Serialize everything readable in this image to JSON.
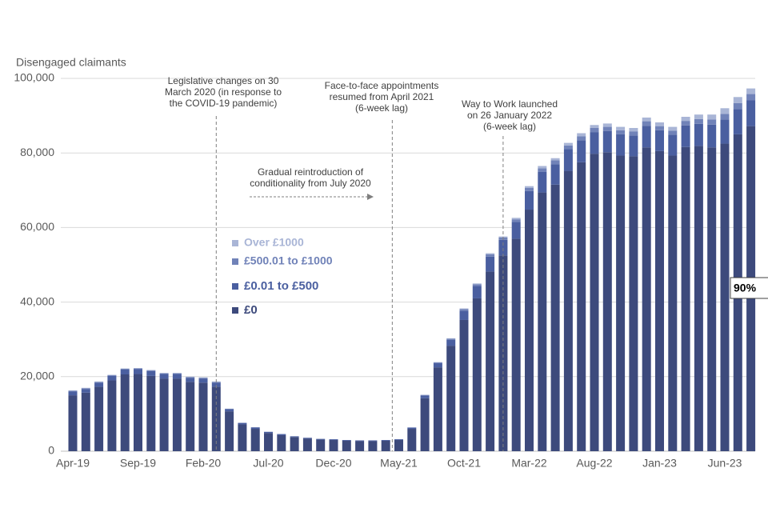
{
  "chart_data": {
    "type": "stacked-bar",
    "y_label": "Disengaged claimants",
    "categories": [
      "Apr-19",
      null,
      null,
      null,
      null,
      "Sep-19",
      null,
      null,
      null,
      null,
      "Feb-20",
      null,
      null,
      null,
      null,
      "Jul-20",
      null,
      null,
      null,
      null,
      "Dec-20",
      null,
      null,
      null,
      null,
      "May-21",
      null,
      null,
      null,
      null,
      "Oct-21",
      null,
      null,
      null,
      null,
      "Mar-22",
      null,
      null,
      null,
      null,
      "Aug-22",
      null,
      null,
      null,
      null,
      "Jan-23",
      null,
      null,
      null,
      null,
      "Jun-23",
      null,
      null
    ],
    "series": [
      {
        "name": "£0",
        "color": "#3d4a7c",
        "values": [
          15000,
          15700,
          17300,
          19000,
          20600,
          20700,
          20200,
          19500,
          19500,
          18600,
          18400,
          17300,
          10700,
          7200,
          6000,
          4900,
          4300,
          3800,
          3400,
          3100,
          3000,
          2800,
          2700,
          2700,
          2800,
          3000,
          6000,
          14200,
          22500,
          28300,
          35200,
          41000,
          48200,
          52500,
          57000,
          64800,
          69400,
          71500,
          75200,
          77500,
          79800,
          80200,
          79300,
          79100,
          81500,
          80500,
          79300,
          81600,
          81900,
          81500,
          82500,
          85000,
          87200
        ]
      },
      {
        "name": "£0.01 to £500",
        "color": "#4a5fa0",
        "values": [
          1000,
          1000,
          1100,
          1200,
          1300,
          1300,
          1300,
          1200,
          1200,
          1100,
          1100,
          1100,
          600,
          400,
          400,
          300,
          300,
          200,
          200,
          200,
          200,
          200,
          200,
          200,
          200,
          200,
          300,
          700,
          1100,
          1600,
          2500,
          3300,
          4000,
          4200,
          4500,
          5000,
          5500,
          5500,
          5800,
          5900,
          5800,
          5700,
          5700,
          5600,
          5800,
          5600,
          5600,
          5800,
          5900,
          6100,
          6500,
          6800,
          6900
        ]
      },
      {
        "name": "£500.01 to £1000",
        "color": "#7082b8",
        "values": [
          200,
          200,
          200,
          200,
          200,
          200,
          200,
          200,
          200,
          200,
          200,
          200,
          100,
          0,
          0,
          0,
          0,
          0,
          0,
          0,
          0,
          0,
          0,
          0,
          0,
          0,
          100,
          200,
          200,
          300,
          400,
          500,
          600,
          600,
          700,
          800,
          1000,
          1000,
          1000,
          1100,
          1100,
          1100,
          1100,
          1100,
          1200,
          1100,
          1100,
          1200,
          1300,
          1400,
          1500,
          1600,
          1700
        ]
      },
      {
        "name": "Over £1000",
        "color": "#a9b5d6",
        "values": [
          100,
          100,
          100,
          100,
          100,
          100,
          100,
          100,
          100,
          100,
          100,
          100,
          0,
          0,
          0,
          0,
          0,
          0,
          0,
          0,
          0,
          0,
          0,
          0,
          0,
          0,
          0,
          0,
          100,
          100,
          200,
          200,
          300,
          300,
          400,
          500,
          600,
          600,
          700,
          800,
          800,
          900,
          900,
          900,
          1000,
          1000,
          1000,
          1100,
          1200,
          1300,
          1500,
          1600,
          1500
        ]
      }
    ],
    "ylim": [
      0,
      100000
    ],
    "yticks": [
      0,
      {
        "value": 20000,
        "label": "20,000"
      },
      {
        "value": 40000,
        "label": "40,000"
      },
      {
        "value": 60000,
        "label": "60,000"
      },
      {
        "value": 80000,
        "label": "80,000"
      },
      {
        "value": 100000,
        "label": "100,000"
      }
    ],
    "grid": true,
    "annotations": [
      {
        "text": [
          "Legislative changes on 30",
          "March 2020 (in response to",
          "the COVID-19 pandemic)"
        ]
      },
      {
        "text": [
          "Face-to-face appointments",
          "resumed from April 2021",
          "(6-week lag)"
        ]
      },
      {
        "text": [
          "Way to Work launched",
          "on 26 January 2022",
          "(6-week lag)"
        ]
      },
      {
        "text": [
          "Gradual reintroduction of",
          "conditionality from July 2020"
        ]
      },
      {
        "text": [
          "90%"
        ]
      }
    ]
  }
}
